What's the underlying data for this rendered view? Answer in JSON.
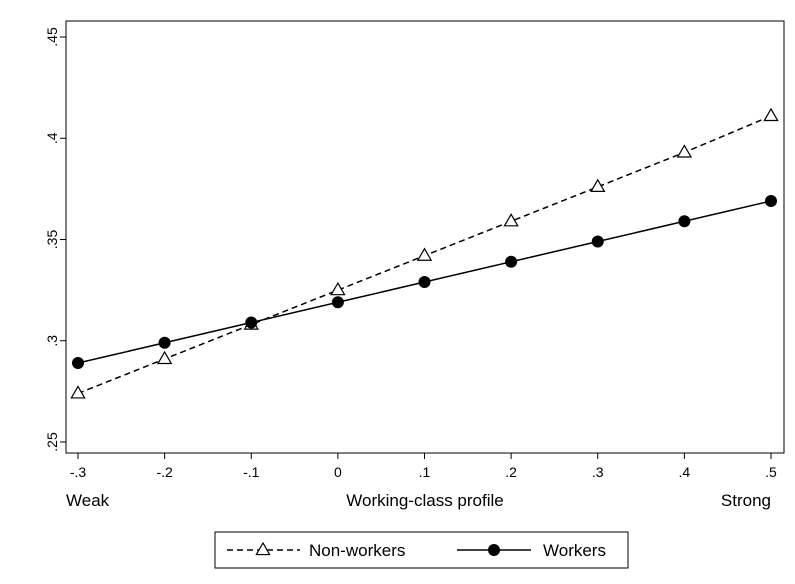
{
  "chart_data": {
    "type": "line",
    "title": "",
    "xlabel": "Working-class profile",
    "ylabel": "",
    "x_end_labels": {
      "left": "Weak",
      "right": "Strong"
    },
    "x": [
      -0.3,
      -0.2,
      -0.1,
      0,
      0.1,
      0.2,
      0.3,
      0.4,
      0.5
    ],
    "x_tick_labels": [
      "-.3",
      "-.2",
      "-.1",
      "0",
      ".1",
      ".2",
      ".3",
      ".4",
      ".5"
    ],
    "y_ticks": [
      0.25,
      0.3,
      0.35,
      0.4,
      0.45
    ],
    "y_tick_labels": [
      ".25",
      ".3",
      ".35",
      ".4",
      ".45"
    ],
    "xlim": [
      -0.3,
      0.5
    ],
    "ylim": [
      0.25,
      0.45
    ],
    "grid": false,
    "legend_position": "bottom",
    "series": [
      {
        "name": "Non-workers",
        "line_style": "dashed",
        "marker": "hollow-triangle",
        "color": "#000000",
        "values": [
          0.274,
          0.291,
          0.308,
          0.325,
          0.342,
          0.359,
          0.376,
          0.393,
          0.411
        ]
      },
      {
        "name": "Workers",
        "line_style": "solid",
        "marker": "filled-circle",
        "color": "#000000",
        "values": [
          0.289,
          0.299,
          0.309,
          0.319,
          0.329,
          0.339,
          0.349,
          0.359,
          0.369
        ]
      }
    ]
  }
}
